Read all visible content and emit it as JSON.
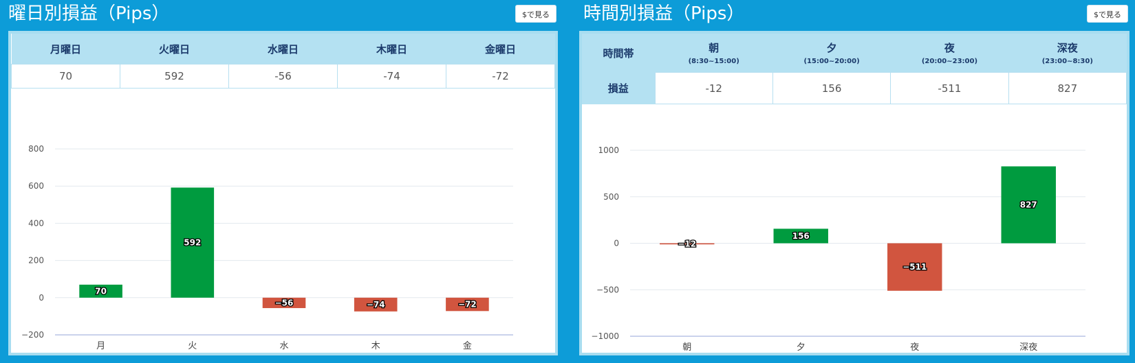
{
  "left": {
    "title": "曜日別損益（Pips）",
    "button_label": "$で見る",
    "table": {
      "headers": [
        "月曜日",
        "火曜日",
        "水曜日",
        "木曜日",
        "金曜日"
      ],
      "values": [
        "70",
        "592",
        "-56",
        "-74",
        "-72"
      ]
    }
  },
  "right": {
    "title": "時間別損益（Pips）",
    "button_label": "$で見る",
    "table": {
      "corner": "時間帯",
      "headers": [
        {
          "label": "朝",
          "sub": "(8:30~15:00)"
        },
        {
          "label": "夕",
          "sub": "(15:00~20:00)"
        },
        {
          "label": "夜",
          "sub": "(20:00~23:00)"
        },
        {
          "label": "深夜",
          "sub": "(23:00~8:30)"
        }
      ],
      "row_label": "損益",
      "values": [
        "-12",
        "156",
        "-511",
        "827"
      ]
    }
  },
  "colors": {
    "positive": "#009b3f",
    "negative": "#d1553f",
    "background": "#0d9cd8",
    "header_bg": "#b4e1f2"
  },
  "chart_data": [
    {
      "type": "bar",
      "categories": [
        "月",
        "火",
        "水",
        "木",
        "金"
      ],
      "values": [
        70,
        592,
        -56,
        -74,
        -72
      ],
      "ylim": [
        -200,
        800
      ],
      "yticks": [
        -200,
        0,
        200,
        400,
        600,
        800
      ],
      "grid": true,
      "title": "",
      "xlabel": "",
      "ylabel": ""
    },
    {
      "type": "bar",
      "categories": [
        "朝",
        "夕",
        "夜",
        "深夜"
      ],
      "values": [
        -12,
        156,
        -511,
        827
      ],
      "ylim": [
        -1000,
        1000
      ],
      "yticks": [
        -1000,
        -500,
        0,
        500,
        1000
      ],
      "grid": true,
      "title": "",
      "xlabel": "",
      "ylabel": ""
    }
  ]
}
